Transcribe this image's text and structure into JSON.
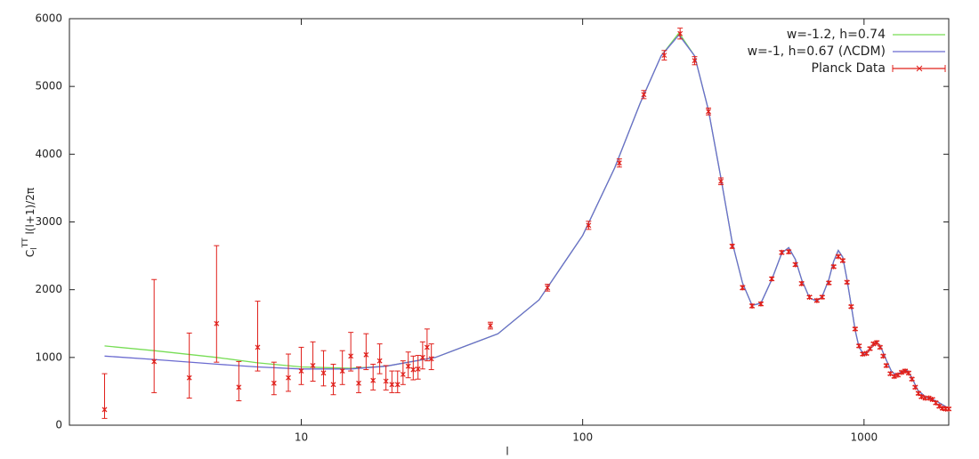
{
  "chart_data": {
    "type": "line",
    "xscale": "log",
    "xlabel": "l",
    "ylabel": {
      "base": "C",
      "sub": "l",
      "sup": "TT",
      "rest": " l(l+1)/2π"
    },
    "xlim": [
      1.5,
      2000
    ],
    "ylim": [
      0,
      6000
    ],
    "xticks": [
      10,
      100,
      1000
    ],
    "yticks": [
      0,
      1000,
      2000,
      3000,
      4000,
      5000,
      6000
    ],
    "legend": "upper right",
    "series": [
      {
        "name": "w=-1.2, h=0.74",
        "type": "line",
        "color": "#77dd55",
        "x": [
          2,
          3,
          5,
          7,
          10,
          15,
          20,
          30,
          50,
          70,
          100,
          130,
          160,
          190,
          220,
          250,
          280,
          310,
          340,
          370,
          400,
          430,
          470,
          510,
          540,
          570,
          600,
          640,
          680,
          710,
          750,
          780,
          810,
          840,
          870,
          900,
          930,
          960,
          1000,
          1050,
          1100,
          1140,
          1200,
          1250,
          1300,
          1350,
          1420,
          1480,
          1550,
          1650,
          1800,
          2000
        ],
        "values": [
          1170,
          1100,
          1000,
          920,
          860,
          840,
          870,
          1000,
          1350,
          1850,
          2800,
          3800,
          4750,
          5450,
          5790,
          5450,
          4650,
          3650,
          2700,
          2100,
          1770,
          1800,
          2150,
          2540,
          2620,
          2450,
          2150,
          1880,
          1830,
          1900,
          2150,
          2420,
          2580,
          2480,
          2150,
          1770,
          1400,
          1150,
          1040,
          1120,
          1230,
          1180,
          960,
          800,
          740,
          780,
          810,
          700,
          520,
          420,
          360,
          250
        ]
      },
      {
        "name": "w=-1, h=0.67 (ΛCDM)",
        "type": "line",
        "color": "#6b6bd0",
        "x": [
          2,
          3,
          5,
          7,
          10,
          15,
          20,
          30,
          50,
          70,
          100,
          130,
          160,
          190,
          220,
          250,
          280,
          310,
          340,
          370,
          400,
          430,
          470,
          510,
          540,
          570,
          600,
          640,
          680,
          710,
          750,
          780,
          810,
          840,
          870,
          900,
          930,
          960,
          1000,
          1050,
          1100,
          1140,
          1200,
          1250,
          1300,
          1350,
          1420,
          1480,
          1550,
          1650,
          1800,
          2000
        ],
        "values": [
          1020,
          970,
          900,
          860,
          830,
          830,
          870,
          1000,
          1350,
          1850,
          2800,
          3800,
          4750,
          5450,
          5760,
          5450,
          4650,
          3650,
          2700,
          2100,
          1770,
          1800,
          2150,
          2540,
          2620,
          2450,
          2150,
          1880,
          1830,
          1900,
          2150,
          2420,
          2580,
          2480,
          2150,
          1770,
          1400,
          1150,
          1040,
          1120,
          1230,
          1180,
          960,
          800,
          740,
          780,
          810,
          700,
          520,
          420,
          360,
          250
        ]
      },
      {
        "name": "Planck Data",
        "type": "errorbar",
        "color": "#e0201b",
        "x": [
          2,
          3,
          4,
          5,
          6,
          7,
          8,
          9,
          10,
          11,
          12,
          13,
          14,
          15,
          16,
          17,
          18,
          19,
          20,
          21,
          22,
          23,
          24,
          25,
          26,
          27,
          28,
          29,
          47,
          75,
          105,
          135,
          165,
          195,
          222,
          250,
          280,
          310,
          340,
          370,
          400,
          430,
          470,
          510,
          540,
          570,
          600,
          640,
          680,
          710,
          750,
          780,
          810,
          840,
          870,
          900,
          930,
          960,
          990,
          1020,
          1050,
          1080,
          1110,
          1140,
          1170,
          1200,
          1240,
          1280,
          1320,
          1360,
          1400,
          1440,
          1480,
          1520,
          1560,
          1600,
          1650,
          1700,
          1750,
          1800,
          1850,
          1900,
          1950,
          2000
        ],
        "values": [
          230,
          940,
          700,
          1500,
          560,
          1150,
          620,
          700,
          800,
          880,
          770,
          600,
          800,
          1020,
          620,
          1040,
          660,
          950,
          650,
          600,
          600,
          750,
          870,
          820,
          830,
          1000,
          1150,
          980,
          1470,
          2030,
          2950,
          3870,
          4880,
          5460,
          5780,
          5380,
          4630,
          3600,
          2640,
          2030,
          1760,
          1790,
          2160,
          2550,
          2560,
          2370,
          2090,
          1890,
          1840,
          1890,
          2100,
          2340,
          2490,
          2430,
          2110,
          1750,
          1420,
          1170,
          1050,
          1060,
          1130,
          1200,
          1220,
          1150,
          1020,
          880,
          760,
          720,
          740,
          780,
          800,
          770,
          680,
          560,
          470,
          420,
          400,
          400,
          380,
          330,
          280,
          250,
          240,
          240
        ],
        "lower": [
          100,
          480,
          400,
          930,
          360,
          800,
          450,
          500,
          600,
          650,
          580,
          450,
          600,
          800,
          480,
          820,
          520,
          760,
          520,
          480,
          480,
          600,
          700,
          670,
          680,
          830,
          950,
          820,
          1420,
          1980,
          2890,
          3810,
          4820,
          5390,
          5700,
          5320,
          4580,
          3550,
          2610,
          2000,
          1735,
          1765,
          2135,
          2525,
          2535,
          2345,
          2065,
          1870,
          1820,
          1870,
          2080,
          2320,
          2470,
          2410,
          2090,
          1730,
          1400,
          1150,
          1030,
          1040,
          1110,
          1180,
          1200,
          1130,
          1000,
          860,
          740,
          700,
          720,
          760,
          780,
          750,
          660,
          540,
          450,
          400,
          380,
          380,
          360,
          310,
          260,
          230,
          220,
          220
        ],
        "upper": [
          760,
          2150,
          1360,
          2650,
          940,
          1830,
          930,
          1050,
          1150,
          1230,
          1100,
          900,
          1100,
          1370,
          860,
          1350,
          900,
          1200,
          880,
          800,
          800,
          950,
          1080,
          1020,
          1030,
          1230,
          1420,
          1200,
          1520,
          2080,
          3010,
          3930,
          4940,
          5530,
          5860,
          5440,
          4680,
          3650,
          2670,
          2060,
          1785,
          1815,
          2185,
          2575,
          2585,
          2395,
          2115,
          1910,
          1860,
          1910,
          2120,
          2360,
          2510,
          2450,
          2130,
          1770,
          1440,
          1190,
          1070,
          1080,
          1150,
          1220,
          1240,
          1170,
          1040,
          900,
          780,
          740,
          760,
          800,
          820,
          790,
          700,
          580,
          490,
          440,
          420,
          420,
          400,
          350,
          300,
          270,
          260,
          260
        ]
      }
    ]
  }
}
